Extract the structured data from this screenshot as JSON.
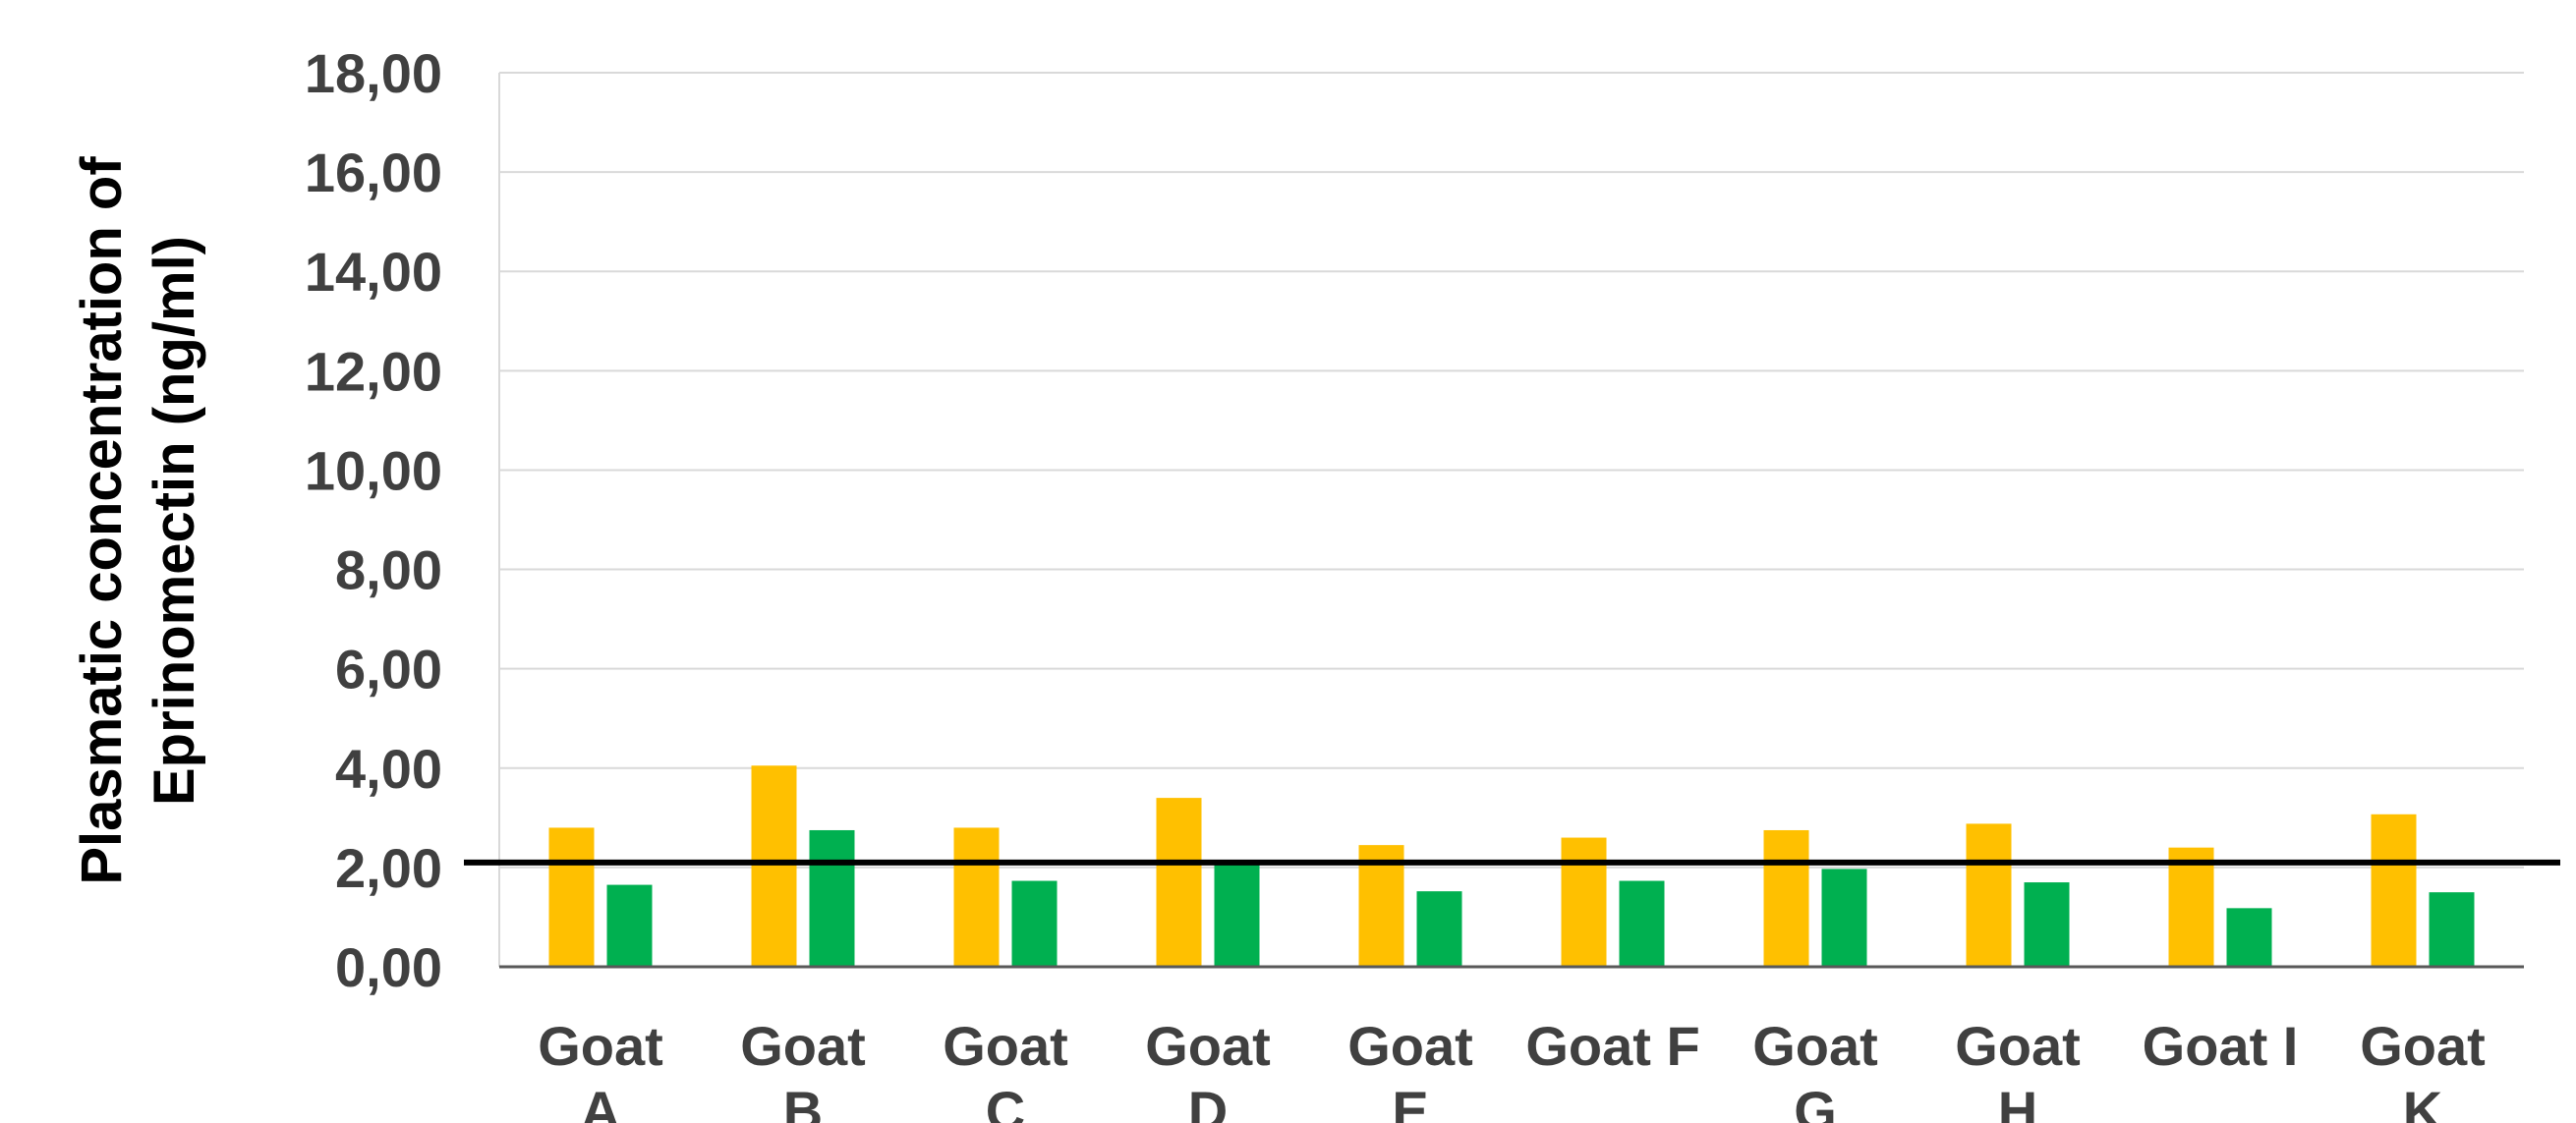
{
  "chart_data": {
    "type": "bar",
    "title": "",
    "xlabel": "",
    "ylabel_lines": [
      "Plasmatic concentration of",
      "Eprinomectin (ng/ml)"
    ],
    "ylim": [
      0,
      18
    ],
    "yticks": [
      "0,00",
      "2,00",
      "4,00",
      "6,00",
      "8,00",
      "10,00",
      "12,00",
      "14,00",
      "16,00",
      "18,00"
    ],
    "grid": true,
    "categories": [
      [
        "Goat",
        "A"
      ],
      [
        "Goat",
        "B"
      ],
      [
        "Goat",
        "C"
      ],
      [
        "Goat",
        "D"
      ],
      [
        "Goat",
        "E"
      ],
      [
        "Goat F"
      ],
      [
        "Goat",
        "G"
      ],
      [
        "Goat",
        "H"
      ],
      [
        "Goat I"
      ],
      [
        "Goat",
        "K"
      ]
    ],
    "series": [
      {
        "color": "#FFC000",
        "values": [
          2.8,
          4.05,
          2.8,
          3.4,
          2.45,
          2.6,
          2.75,
          2.88,
          2.4,
          3.07
        ]
      },
      {
        "color": "#00B050",
        "values": [
          1.65,
          2.75,
          1.73,
          2.05,
          1.52,
          1.73,
          1.97,
          1.7,
          1.18,
          1.5
        ]
      }
    ],
    "reference_line": {
      "value": 2.1,
      "color": "#000000"
    }
  }
}
